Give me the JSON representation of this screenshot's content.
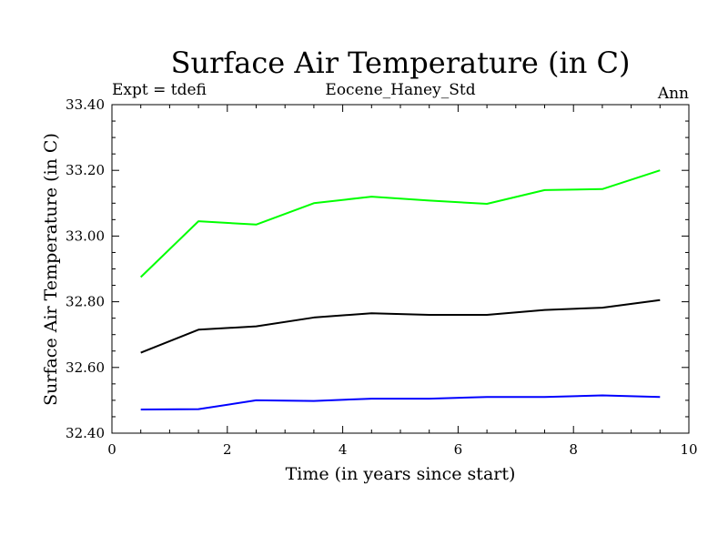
{
  "chart_data": {
    "type": "line",
    "title": "Surface Air Temperature (in C)",
    "subtitle_left": "Expt = tdefi",
    "subtitle_center": "Eocene_Haney_Std",
    "subtitle_right": "Ann",
    "xlabel": "Time (in years since start)",
    "ylabel": "Surface Air Temperature (in C)",
    "xlim": [
      0,
      10
    ],
    "ylim": [
      32.4,
      33.4
    ],
    "x_ticks": [
      0,
      2,
      4,
      6,
      8,
      10
    ],
    "x_tick_labels": [
      "0",
      "2",
      "4",
      "6",
      "8",
      "10"
    ],
    "y_ticks": [
      32.4,
      32.6,
      32.8,
      33.0,
      33.2,
      33.4
    ],
    "y_tick_labels": [
      "32.40",
      "32.60",
      "32.80",
      "33.00",
      "33.20",
      "33.40"
    ],
    "grid": false,
    "x": [
      0.5,
      1.5,
      2.5,
      3.5,
      4.5,
      5.5,
      6.5,
      7.5,
      8.5,
      9.5
    ],
    "series": [
      {
        "color": "#00ff00",
        "values": [
          32.875,
          33.045,
          33.035,
          33.1,
          33.12,
          33.108,
          33.098,
          33.14,
          33.143,
          33.2
        ]
      },
      {
        "color": "#000000",
        "values": [
          32.645,
          32.715,
          32.725,
          32.752,
          32.765,
          32.76,
          32.76,
          32.775,
          32.782,
          32.805
        ]
      },
      {
        "color": "#0000ff",
        "values": [
          32.472,
          32.473,
          32.5,
          32.498,
          32.505,
          32.505,
          32.51,
          32.51,
          32.515,
          32.51
        ]
      }
    ]
  }
}
